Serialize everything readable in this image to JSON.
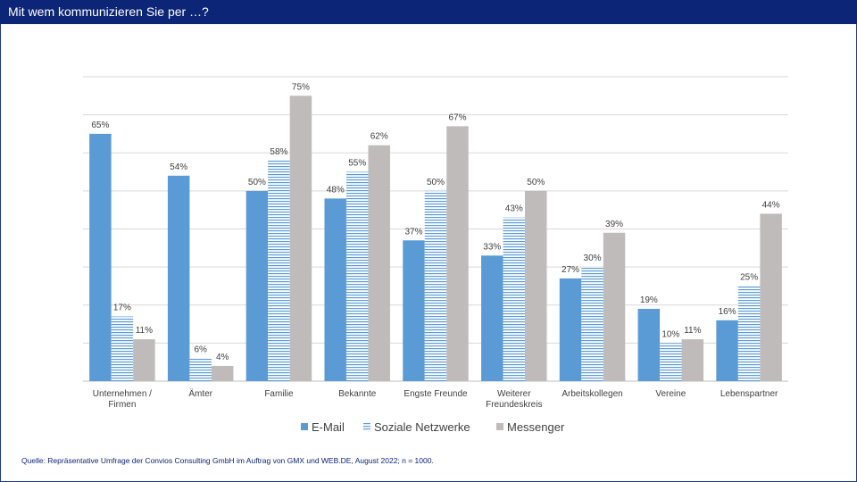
{
  "page": {
    "title": "Mit wem kommunizieren Sie per …?",
    "source": "Quelle: Repräsentative Umfrage der Convios Consulting GmbH im Auftrag von GMX und WEB.DE, August 2022; n = 1000."
  },
  "colors": {
    "header_bg": "#0c2577",
    "email": "#5b9bd5",
    "social": "#5b9bd5",
    "messenger": "#bfbbbb",
    "grid": "#d9d9d9",
    "axis": "#bfbfbf"
  },
  "chart_data": {
    "type": "bar",
    "title": "",
    "xlabel": "",
    "ylabel": "",
    "ylim": [
      0,
      80
    ],
    "grid": true,
    "legend_position": "bottom",
    "categories": [
      [
        "Unternehmen /",
        "Firmen"
      ],
      [
        "Ämter"
      ],
      [
        "Familie"
      ],
      [
        "Bekannte"
      ],
      [
        "Engste Freunde"
      ],
      [
        "Weiterer",
        "Freundeskreis"
      ],
      [
        "Arbeitskollegen"
      ],
      [
        "Vereine"
      ],
      [
        "Lebenspartner"
      ]
    ],
    "series": [
      {
        "name": "E-Mail",
        "style": "solid",
        "values": [
          65,
          54,
          50,
          48,
          37,
          33,
          27,
          19,
          16
        ]
      },
      {
        "name": "Soziale Netzwerke",
        "style": "striped",
        "values": [
          17,
          6,
          58,
          55,
          50,
          43,
          30,
          10,
          25
        ]
      },
      {
        "name": "Messenger",
        "style": "solid",
        "values": [
          11,
          4,
          75,
          62,
          67,
          50,
          39,
          11,
          44
        ]
      }
    ],
    "value_suffix": "%"
  }
}
